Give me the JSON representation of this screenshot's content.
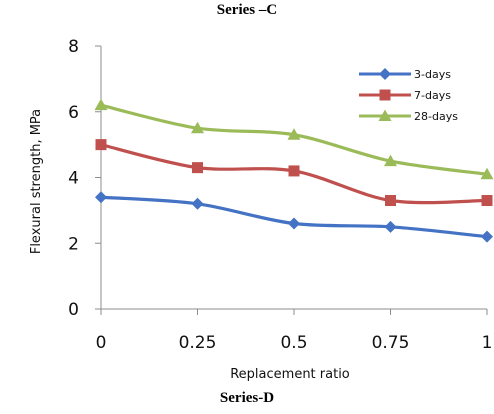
{
  "top_caption": "Series –C",
  "bottom_caption": "Series-D",
  "chart_data": {
    "type": "line",
    "x": [
      0,
      0.25,
      0.5,
      0.75,
      1
    ],
    "x_tick_labels": [
      "0",
      "0.25",
      "0.5",
      "0.75",
      "1"
    ],
    "y_ticks": [
      0,
      2,
      4,
      6,
      8
    ],
    "xlim": [
      0,
      1
    ],
    "ylim": [
      0,
      8
    ],
    "xlabel": "Replacement ratio",
    "ylabel": "Flexural strength, MPa",
    "grid": false,
    "legend_position": "top-right",
    "series": [
      {
        "name": "3-days",
        "color": "#4472C4",
        "marker": "diamond",
        "values": [
          3.4,
          3.2,
          2.6,
          2.5,
          2.2
        ]
      },
      {
        "name": "7-days",
        "color": "#C0504D",
        "marker": "square",
        "values": [
          5.0,
          4.3,
          4.2,
          3.3,
          3.3
        ]
      },
      {
        "name": "28-days",
        "color": "#9BBB59",
        "marker": "triangle",
        "values": [
          6.2,
          5.5,
          5.3,
          4.5,
          4.1
        ]
      }
    ]
  }
}
